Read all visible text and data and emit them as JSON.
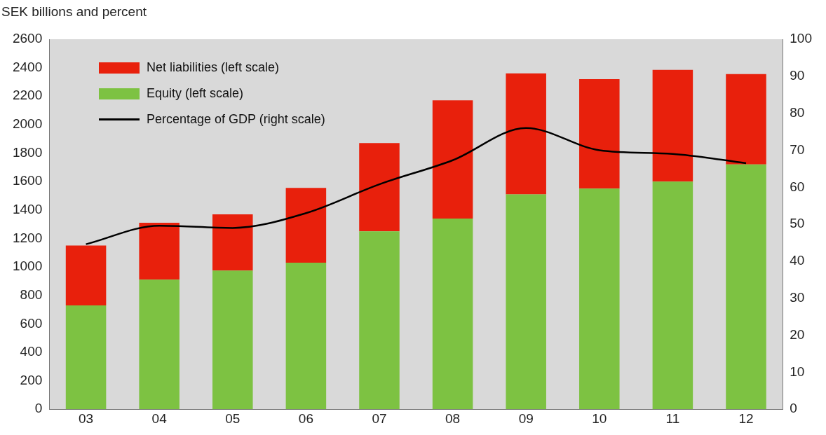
{
  "chart_data": {
    "type": "bar",
    "stacked": true,
    "ylabel": "SEK billions and percent",
    "categories": [
      "03",
      "04",
      "05",
      "06",
      "07",
      "08",
      "09",
      "10",
      "11",
      "12"
    ],
    "series": [
      {
        "name": "Equity (left scale)",
        "color": "#7dc242",
        "values": [
          730,
          910,
          975,
          1030,
          1250,
          1340,
          1510,
          1550,
          1600,
          1720
        ]
      },
      {
        "name": "Net liabilities (left scale)",
        "color": "#e8200c",
        "values": [
          420,
          400,
          395,
          525,
          620,
          830,
          850,
          770,
          785,
          635
        ]
      },
      {
        "name": "Percentage of GDP (right scale)",
        "type": "line",
        "axis": "y2",
        "color": "#000000",
        "values": [
          44.6,
          49.6,
          49,
          53,
          60.8,
          67.3,
          76,
          70,
          69,
          66.5
        ]
      }
    ],
    "ylim": [
      0,
      2600
    ],
    "yticks": [
      0,
      200,
      400,
      600,
      800,
      1000,
      1200,
      1400,
      1600,
      1800,
      2000,
      2200,
      2400,
      2600
    ],
    "y2lim": [
      0,
      100
    ],
    "y2ticks": [
      0,
      10,
      20,
      30,
      40,
      50,
      60,
      70,
      80,
      90,
      100
    ],
    "legend": "top left",
    "grid": false,
    "marker": "none"
  }
}
